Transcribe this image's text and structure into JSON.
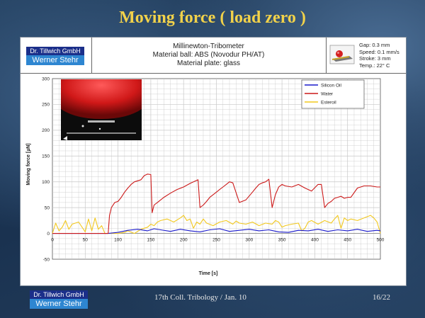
{
  "slide_title": "Moving force ( load zero )",
  "logo": {
    "line1": "Dr. Tillwich GmbH",
    "line2": "Werner Stehr"
  },
  "header": {
    "line1": "Millinewton-Tribometer",
    "line2": "Material ball: ABS (Novodur PH/AT)",
    "line3": "Material plate: glass"
  },
  "specs": [
    "Gap: 0.3 mm",
    "Speed: 0.1 mm/s",
    "Stroke: 3 mm",
    "Temp.: 22° C"
  ],
  "footer": {
    "logo_line1": "Dr. Tillwich GmbH",
    "logo_line2": "Werner Stehr",
    "center": "17th Coll. Tribology / Jan. 10",
    "page": "16/22"
  },
  "colors": {
    "silicon": "#1a1acc",
    "water": "#cc1a1a",
    "esteroil": "#f2c81e"
  },
  "chart_data": {
    "type": "line",
    "xlabel": "Time [s]",
    "ylabel": "Moving force [µN]",
    "xlim": [
      0,
      500
    ],
    "ylim": [
      -50,
      300
    ],
    "xticks": [
      "0",
      "50",
      "100",
      "150",
      "200",
      "250",
      "300",
      "350",
      "400",
      "450",
      "500"
    ],
    "yticks": [
      "-50",
      "0",
      "50",
      "100",
      "150",
      "200",
      "250",
      "300"
    ],
    "grid": true,
    "legend_position": "top-right",
    "series": [
      {
        "name": "Silicon Oil",
        "x": [
          0,
          30,
          60,
          85,
          100,
          115,
          130,
          145,
          155,
          165,
          180,
          195,
          210,
          225,
          240,
          255,
          270,
          285,
          300,
          315,
          330,
          345,
          360,
          375,
          390,
          405,
          420,
          435,
          450,
          465,
          480,
          495,
          500
        ],
        "y": [
          0,
          0,
          0,
          0,
          2,
          6,
          8,
          5,
          9,
          7,
          4,
          8,
          5,
          3,
          7,
          9,
          4,
          6,
          8,
          5,
          7,
          3,
          2,
          6,
          5,
          8,
          4,
          7,
          5,
          8,
          4,
          6,
          5
        ]
      },
      {
        "name": "Water",
        "x": [
          0,
          85,
          87,
          90,
          95,
          100,
          105,
          110,
          115,
          118,
          120,
          125,
          130,
          135,
          140,
          145,
          150,
          152,
          155,
          160,
          170,
          180,
          190,
          200,
          210,
          215,
          222,
          225,
          230,
          235,
          240,
          250,
          255,
          260,
          265,
          270,
          275,
          285,
          295,
          305,
          310,
          315,
          320,
          325,
          330,
          335,
          340,
          345,
          350,
          355,
          365,
          375,
          385,
          395,
          405,
          410,
          415,
          420,
          425,
          430,
          435,
          440,
          445,
          450,
          455,
          465,
          475,
          485,
          495,
          500
        ],
        "y": [
          0,
          0,
          35,
          50,
          60,
          62,
          70,
          80,
          88,
          92,
          95,
          100,
          102,
          104,
          112,
          115,
          114,
          40,
          55,
          60,
          70,
          78,
          85,
          90,
          97,
          100,
          104,
          50,
          55,
          62,
          70,
          80,
          85,
          90,
          95,
          100,
          98,
          60,
          65,
          80,
          88,
          95,
          98,
          100,
          105,
          50,
          75,
          90,
          95,
          92,
          90,
          95,
          88,
          82,
          95,
          95,
          50,
          58,
          62,
          68,
          70,
          72,
          68,
          70,
          70,
          88,
          92,
          92,
          90,
          90
        ]
      },
      {
        "name": "Esteroil",
        "x": [
          0,
          5,
          10,
          15,
          20,
          25,
          30,
          40,
          50,
          55,
          60,
          65,
          70,
          75,
          80,
          85,
          90,
          95,
          100,
          110,
          115,
          125,
          135,
          145,
          150,
          155,
          160,
          165,
          175,
          185,
          195,
          200,
          205,
          210,
          215,
          220,
          225,
          230,
          235,
          245,
          255,
          265,
          275,
          280,
          285,
          295,
          305,
          315,
          325,
          335,
          340,
          345,
          350,
          355,
          365,
          375,
          380,
          385,
          390,
          395,
          405,
          415,
          425,
          430,
          435,
          440,
          445,
          450,
          455,
          465,
          475,
          485,
          490,
          495,
          500
        ],
        "y": [
          0,
          20,
          5,
          12,
          25,
          8,
          18,
          22,
          3,
          28,
          5,
          30,
          8,
          15,
          0,
          0,
          0,
          0,
          0,
          2,
          5,
          0,
          8,
          12,
          18,
          15,
          22,
          25,
          28,
          22,
          30,
          35,
          25,
          28,
          10,
          22,
          18,
          28,
          20,
          15,
          22,
          25,
          18,
          24,
          20,
          18,
          22,
          15,
          20,
          18,
          25,
          22,
          12,
          15,
          18,
          20,
          5,
          10,
          22,
          25,
          18,
          25,
          20,
          28,
          35,
          10,
          30,
          25,
          28,
          25,
          30,
          35,
          30,
          22,
          0
        ]
      }
    ]
  }
}
